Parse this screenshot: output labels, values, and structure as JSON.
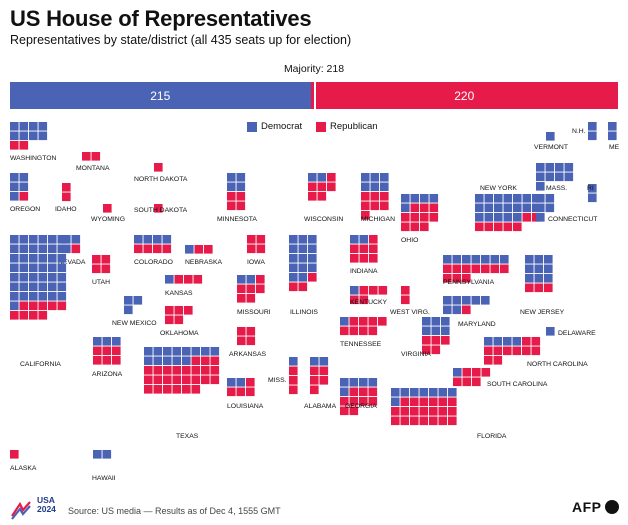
{
  "title": "US House of Representatives",
  "subtitle": "Representatives by state/district (all 435 seats up for election)",
  "majority_label": "Majority: 218",
  "legend": {
    "dem": "Democrat",
    "rep": "Republican"
  },
  "colors": {
    "dem": "#4a63b5",
    "rep": "#e61b4a"
  },
  "source": "Source: US media — Results as of Dec 4, 1555 GMT",
  "brand": {
    "usa": "USA",
    "year": "2024",
    "agency": "AFP"
  },
  "chart_data": {
    "type": "tile-map",
    "totals": {
      "dem": 215,
      "rep": 220,
      "total": 435,
      "majority": 218
    },
    "states": [
      {
        "name": "WASHINGTON",
        "dem": 8,
        "rep": 2
      },
      {
        "name": "OREGON",
        "dem": 5,
        "rep": 1
      },
      {
        "name": "IDAHO",
        "dem": 0,
        "rep": 2
      },
      {
        "name": "MONTANA",
        "dem": 0,
        "rep": 2
      },
      {
        "name": "WYOMING",
        "dem": 0,
        "rep": 1
      },
      {
        "name": "NORTH DAKOTA",
        "dem": 0,
        "rep": 1
      },
      {
        "name": "SOUTH DAKOTA",
        "dem": 0,
        "rep": 1
      },
      {
        "name": "MINNESOTA",
        "dem": 4,
        "rep": 4
      },
      {
        "name": "WISCONSIN",
        "dem": 2,
        "rep": 6
      },
      {
        "name": "MICHIGAN",
        "dem": 6,
        "rep": 7
      },
      {
        "name": "NEW YORK",
        "dem": 19,
        "rep": 7
      },
      {
        "name": "VERMONT",
        "dem": 1,
        "rep": 0
      },
      {
        "name": "N.H.",
        "dem": 2,
        "rep": 0
      },
      {
        "name": "ME",
        "dem": 2,
        "rep": 0
      },
      {
        "name": "MASS.",
        "dem": 9,
        "rep": 0
      },
      {
        "name": "RI",
        "dem": 2,
        "rep": 0
      },
      {
        "name": "CONNECTICUT",
        "dem": 5,
        "rep": 0
      },
      {
        "name": "NEVADA",
        "dem": 3,
        "rep": 1
      },
      {
        "name": "UTAH",
        "dem": 0,
        "rep": 4
      },
      {
        "name": "COLORADO",
        "dem": 4,
        "rep": 4
      },
      {
        "name": "NEBRASKA",
        "dem": 1,
        "rep": 2
      },
      {
        "name": "IOWA",
        "dem": 0,
        "rep": 4
      },
      {
        "name": "ILLINOIS",
        "dem": 14,
        "rep": 3
      },
      {
        "name": "INDIANA",
        "dem": 2,
        "rep": 7
      },
      {
        "name": "OHIO",
        "dem": 5,
        "rep": 10
      },
      {
        "name": "PENNSYLVANIA",
        "dem": 7,
        "rep": 10
      },
      {
        "name": "NEW JERSEY",
        "dem": 9,
        "rep": 3
      },
      {
        "name": "CALIFORNIA",
        "dem": 43,
        "rep": 9
      },
      {
        "name": "KANSAS",
        "dem": 1,
        "rep": 3
      },
      {
        "name": "MISSOURI",
        "dem": 2,
        "rep": 6
      },
      {
        "name": "KENTUCKY",
        "dem": 1,
        "rep": 5
      },
      {
        "name": "WEST VIRG.",
        "dem": 0,
        "rep": 2
      },
      {
        "name": "MARYLAND",
        "dem": 7,
        "rep": 1
      },
      {
        "name": "DELAWARE",
        "dem": 1,
        "rep": 0
      },
      {
        "name": "NEW MEXICO",
        "dem": 3,
        "rep": 0
      },
      {
        "name": "OKLAHOMA",
        "dem": 0,
        "rep": 5
      },
      {
        "name": "ARKANSAS",
        "dem": 0,
        "rep": 4
      },
      {
        "name": "TENNESSEE",
        "dem": 1,
        "rep": 8
      },
      {
        "name": "VIRGINIA",
        "dem": 6,
        "rep": 5
      },
      {
        "name": "NORTH CAROLINA",
        "dem": 4,
        "rep": 10
      },
      {
        "name": "ARIZONA",
        "dem": 3,
        "rep": 6
      },
      {
        "name": "TEXAS",
        "dem": 13,
        "rep": 25
      },
      {
        "name": "LOUISIANA",
        "dem": 2,
        "rep": 4
      },
      {
        "name": "MISS.",
        "dem": 1,
        "rep": 3
      },
      {
        "name": "ALABAMA",
        "dem": 2,
        "rep": 5
      },
      {
        "name": "GEORGIA",
        "dem": 5,
        "rep": 9
      },
      {
        "name": "SOUTH CAROLINA",
        "dem": 1,
        "rep": 6
      },
      {
        "name": "FLORIDA",
        "dem": 8,
        "rep": 20
      },
      {
        "name": "ALASKA",
        "dem": 0,
        "rep": 1
      },
      {
        "name": "HAWAII",
        "dem": 2,
        "rep": 0
      }
    ]
  }
}
